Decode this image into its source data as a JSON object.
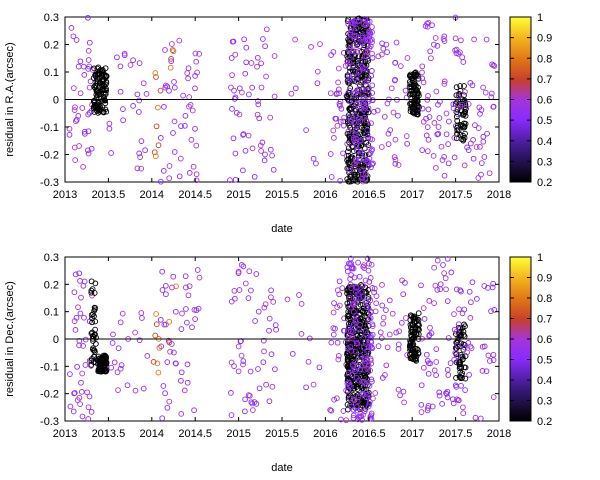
{
  "chart_data": [
    {
      "type": "scatter",
      "xlabel": "date",
      "ylabel": "residual in R.A.(arcsec)",
      "xlim": [
        2013,
        2018
      ],
      "ylim": [
        -0.3,
        0.3
      ],
      "xticks": [
        "2013",
        "2013.5",
        "2014",
        "2014.5",
        "2015",
        "2015.5",
        "2016",
        "2016.5",
        "2017",
        "2017.5",
        "2018"
      ],
      "yticks": [
        "-0.3",
        "-0.2",
        "-0.1",
        "0",
        "0.1",
        "0.2",
        "0.3"
      ],
      "colorbar": {
        "range": [
          0.2,
          1.0
        ],
        "ticks": [
          "0.2",
          "0.3",
          "0.4",
          "0.5",
          "0.6",
          "0.7",
          "0.8",
          "0.9",
          "1"
        ]
      },
      "zero_line": true,
      "clusters": [
        {
          "x": [
            2013.05,
            2013.32
          ],
          "y": [
            -0.3,
            0.3
          ],
          "weight": [
            0.35,
            0.5
          ],
          "count": 40
        },
        {
          "x": [
            2013.33,
            2013.48
          ],
          "y": [
            -0.05,
            0.12
          ],
          "weight": [
            0.2,
            0.24
          ],
          "count": 120
        },
        {
          "x": [
            2013.5,
            2013.95
          ],
          "y": [
            -0.26,
            0.22
          ],
          "weight": [
            0.38,
            0.5
          ],
          "count": 25
        },
        {
          "x": [
            2014.02,
            2014.1
          ],
          "y": [
            -0.25,
            0.12
          ],
          "weight": [
            0.62,
            0.72
          ],
          "count": 8
        },
        {
          "x": [
            2014.1,
            2014.55
          ],
          "y": [
            -0.3,
            0.22
          ],
          "weight": [
            0.38,
            0.5
          ],
          "count": 45
        },
        {
          "x": [
            2014.2,
            2014.3
          ],
          "y": [
            0.08,
            0.22
          ],
          "weight": [
            0.62,
            0.72
          ],
          "count": 4
        },
        {
          "x": [
            2014.9,
            2015.45
          ],
          "y": [
            -0.3,
            0.28
          ],
          "weight": [
            0.38,
            0.5
          ],
          "count": 55
        },
        {
          "x": [
            2015.55,
            2015.95
          ],
          "y": [
            -0.24,
            0.22
          ],
          "weight": [
            0.38,
            0.5
          ],
          "count": 10
        },
        {
          "x": [
            2016.05,
            2016.25
          ],
          "y": [
            -0.3,
            0.2
          ],
          "weight": [
            0.38,
            0.5
          ],
          "count": 30
        },
        {
          "x": [
            2016.25,
            2016.5
          ],
          "y": [
            -0.3,
            0.3
          ],
          "weight": [
            0.2,
            0.26
          ],
          "count": 420
        },
        {
          "x": [
            2016.25,
            2016.55
          ],
          "y": [
            -0.3,
            0.3
          ],
          "weight": [
            0.36,
            0.5
          ],
          "count": 160
        },
        {
          "x": [
            2016.55,
            2016.95
          ],
          "y": [
            -0.24,
            0.22
          ],
          "weight": [
            0.38,
            0.5
          ],
          "count": 35
        },
        {
          "x": [
            2016.97,
            2017.08
          ],
          "y": [
            -0.06,
            0.1
          ],
          "weight": [
            0.2,
            0.25
          ],
          "count": 90
        },
        {
          "x": [
            2017.1,
            2017.55
          ],
          "y": [
            -0.28,
            0.3
          ],
          "weight": [
            0.38,
            0.5
          ],
          "count": 55
        },
        {
          "x": [
            2017.5,
            2017.62
          ],
          "y": [
            -0.15,
            0.05
          ],
          "weight": [
            0.2,
            0.25
          ],
          "count": 55
        },
        {
          "x": [
            2017.45,
            2017.95
          ],
          "y": [
            -0.3,
            0.22
          ],
          "weight": [
            0.38,
            0.5
          ],
          "count": 50
        }
      ]
    },
    {
      "type": "scatter",
      "xlabel": "date",
      "ylabel": "residual in Dec.(arcsec)",
      "xlim": [
        2013,
        2018
      ],
      "ylim": [
        -0.3,
        0.3
      ],
      "xticks": [
        "2013",
        "2013.5",
        "2014",
        "2014.5",
        "2015",
        "2015.5",
        "2016",
        "2016.5",
        "2017",
        "2017.5",
        "2018"
      ],
      "yticks": [
        "-0.3",
        "-0.2",
        "-0.1",
        "0",
        "0.1",
        "0.2",
        "0.3"
      ],
      "colorbar": {
        "range": [
          0.2,
          1.0
        ],
        "ticks": [
          "0.2",
          "0.3",
          "0.4",
          "0.5",
          "0.6",
          "0.7",
          "0.8",
          "0.9",
          "1"
        ]
      },
      "zero_line": true,
      "clusters": [
        {
          "x": [
            2013.05,
            2013.32
          ],
          "y": [
            -0.3,
            0.25
          ],
          "weight": [
            0.35,
            0.5
          ],
          "count": 40
        },
        {
          "x": [
            2013.3,
            2013.36
          ],
          "y": [
            -0.12,
            0.22
          ],
          "weight": [
            0.2,
            0.24
          ],
          "count": 40
        },
        {
          "x": [
            2013.38,
            2013.48
          ],
          "y": [
            -0.12,
            -0.06
          ],
          "weight": [
            0.2,
            0.24
          ],
          "count": 80
        },
        {
          "x": [
            2013.5,
            2013.95
          ],
          "y": [
            -0.2,
            0.2
          ],
          "weight": [
            0.38,
            0.5
          ],
          "count": 20
        },
        {
          "x": [
            2014.02,
            2014.1
          ],
          "y": [
            -0.14,
            0.12
          ],
          "weight": [
            0.62,
            0.72
          ],
          "count": 8
        },
        {
          "x": [
            2014.1,
            2014.55
          ],
          "y": [
            -0.3,
            0.26
          ],
          "weight": [
            0.38,
            0.5
          ],
          "count": 45
        },
        {
          "x": [
            2014.2,
            2014.3
          ],
          "y": [
            -0.12,
            0.25
          ],
          "weight": [
            0.62,
            0.72
          ],
          "count": 3
        },
        {
          "x": [
            2014.9,
            2015.45
          ],
          "y": [
            -0.28,
            0.28
          ],
          "weight": [
            0.38,
            0.5
          ],
          "count": 55
        },
        {
          "x": [
            2015.55,
            2015.95
          ],
          "y": [
            -0.2,
            0.2
          ],
          "weight": [
            0.38,
            0.5
          ],
          "count": 10
        },
        {
          "x": [
            2016.05,
            2016.25
          ],
          "y": [
            -0.3,
            0.25
          ],
          "weight": [
            0.38,
            0.5
          ],
          "count": 30
        },
        {
          "x": [
            2016.25,
            2016.5
          ],
          "y": [
            -0.26,
            0.2
          ],
          "weight": [
            0.2,
            0.26
          ],
          "count": 420
        },
        {
          "x": [
            2016.25,
            2016.55
          ],
          "y": [
            -0.3,
            0.3
          ],
          "weight": [
            0.36,
            0.5
          ],
          "count": 160
        },
        {
          "x": [
            2016.55,
            2016.95
          ],
          "y": [
            -0.24,
            0.22
          ],
          "weight": [
            0.38,
            0.5
          ],
          "count": 35
        },
        {
          "x": [
            2016.97,
            2017.08
          ],
          "y": [
            -0.08,
            0.1
          ],
          "weight": [
            0.2,
            0.25
          ],
          "count": 90
        },
        {
          "x": [
            2017.1,
            2017.55
          ],
          "y": [
            -0.28,
            0.3
          ],
          "weight": [
            0.38,
            0.5
          ],
          "count": 55
        },
        {
          "x": [
            2017.5,
            2017.62
          ],
          "y": [
            -0.15,
            0.06
          ],
          "weight": [
            0.2,
            0.25
          ],
          "count": 55
        },
        {
          "x": [
            2017.45,
            2017.95
          ],
          "y": [
            -0.3,
            0.22
          ],
          "weight": [
            0.38,
            0.5
          ],
          "count": 50
        }
      ]
    }
  ]
}
